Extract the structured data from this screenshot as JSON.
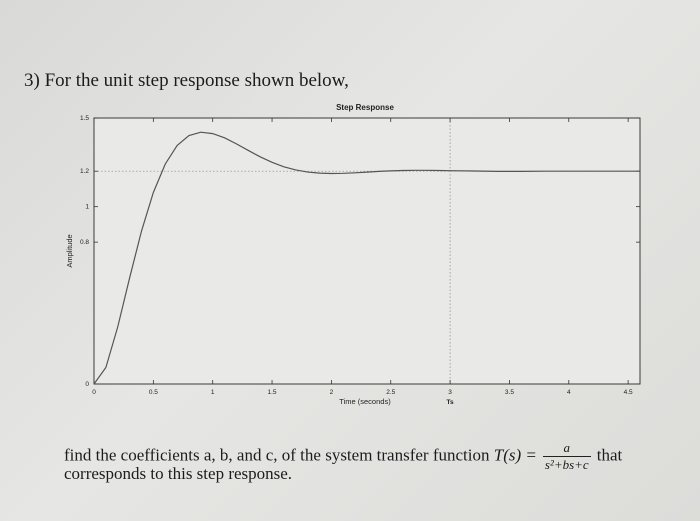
{
  "question": {
    "number": "3)",
    "heading": "For the unit step response shown below,"
  },
  "chart_data": {
    "type": "line",
    "title": "Step Response",
    "xlabel": "Time (seconds)",
    "ylabel": "Amplitude",
    "xlim": [
      0,
      4.6
    ],
    "ylim": [
      0,
      1.5
    ],
    "x_ticks": [
      0,
      0.5,
      1,
      1.5,
      2,
      2.5,
      3,
      3.5,
      4,
      4.5
    ],
    "x_tick_labels": [
      "0",
      "0.5",
      "1",
      "1.5",
      "2",
      "2.5",
      "3",
      "3.5",
      "4",
      "4.5"
    ],
    "y_ticks": [
      0,
      0.8,
      1,
      1.2,
      1.5
    ],
    "y_tick_labels": [
      "0",
      "0.8",
      "1",
      "1.2",
      "1.5"
    ],
    "markers": [
      {
        "x": 3,
        "label": "Ts",
        "style": "dotted-vertical"
      }
    ],
    "reference_lines": [
      {
        "y": 1.2,
        "style": "dotted-horizontal"
      }
    ],
    "grid": false,
    "series": [
      {
        "x": [
          0,
          0.1,
          0.2,
          0.3,
          0.4,
          0.5,
          0.6,
          0.7,
          0.8,
          0.9,
          1.0,
          1.1,
          1.2,
          1.3,
          1.4,
          1.5,
          1.6,
          1.7,
          1.8,
          1.9,
          2.0,
          2.1,
          2.2,
          2.3,
          2.4,
          2.5,
          2.6,
          2.7,
          2.8,
          2.9,
          3.0,
          3.2,
          3.4,
          3.6,
          3.8,
          4.0,
          4.2,
          4.4,
          4.6
        ],
        "y": [
          0,
          0.093,
          0.322,
          0.598,
          0.862,
          1.08,
          1.24,
          1.345,
          1.401,
          1.42,
          1.412,
          1.388,
          1.354,
          1.317,
          1.281,
          1.25,
          1.225,
          1.207,
          1.195,
          1.189,
          1.187,
          1.188,
          1.191,
          1.195,
          1.199,
          1.202,
          1.204,
          1.205,
          1.205,
          1.204,
          1.203,
          1.201,
          1.199,
          1.199,
          1.2,
          1.2,
          1.2,
          1.2,
          1.2
        ]
      }
    ]
  },
  "footer": {
    "text1": "find the coefficients a, b, and c, of the system transfer function ",
    "func": "T(s) =",
    "numerator": "a",
    "denominator": "s²+bs+c",
    "text2": "that",
    "line2": "corresponds to this step response."
  }
}
